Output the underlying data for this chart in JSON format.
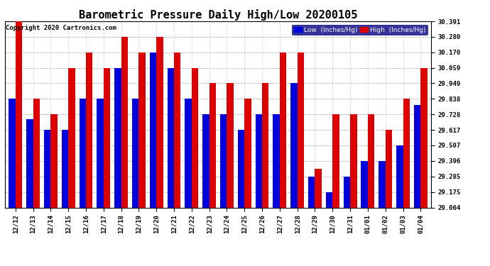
{
  "title": "Barometric Pressure Daily High/Low 20200105",
  "copyright": "Copyright 2020 Cartronics.com",
  "dates": [
    "12/12",
    "12/13",
    "12/14",
    "12/15",
    "12/16",
    "12/17",
    "12/18",
    "12/19",
    "12/20",
    "12/21",
    "12/22",
    "12/23",
    "12/24",
    "12/25",
    "12/26",
    "12/27",
    "12/28",
    "12/29",
    "12/30",
    "12/31",
    "01/01",
    "01/02",
    "01/03",
    "01/04"
  ],
  "low_values": [
    29.838,
    29.695,
    29.617,
    29.617,
    29.838,
    29.838,
    30.059,
    29.838,
    30.17,
    30.059,
    29.838,
    29.728,
    29.728,
    29.617,
    29.728,
    29.728,
    29.949,
    29.285,
    29.175,
    29.285,
    29.396,
    29.396,
    29.507,
    29.795
  ],
  "high_values": [
    30.391,
    29.838,
    29.728,
    30.059,
    30.17,
    30.059,
    30.28,
    30.17,
    30.28,
    30.17,
    30.059,
    29.949,
    29.949,
    29.838,
    29.949,
    30.17,
    30.17,
    29.338,
    29.728,
    29.728,
    29.728,
    29.617,
    29.838,
    30.059
  ],
  "ylim_min": 29.064,
  "ylim_max": 30.391,
  "yticks": [
    29.064,
    29.175,
    29.285,
    29.396,
    29.507,
    29.617,
    29.728,
    29.838,
    29.949,
    30.059,
    30.17,
    30.28,
    30.391
  ],
  "low_color": "#0000dd",
  "high_color": "#dd0000",
  "bg_color": "#ffffff",
  "grid_color": "#aaaaaa",
  "bar_width": 0.38,
  "legend_low_label": "Low  (Inches/Hg)",
  "legend_high_label": "High  (Inches/Hg)",
  "title_fontsize": 11,
  "tick_fontsize": 6.5,
  "copyright_fontsize": 6.5
}
